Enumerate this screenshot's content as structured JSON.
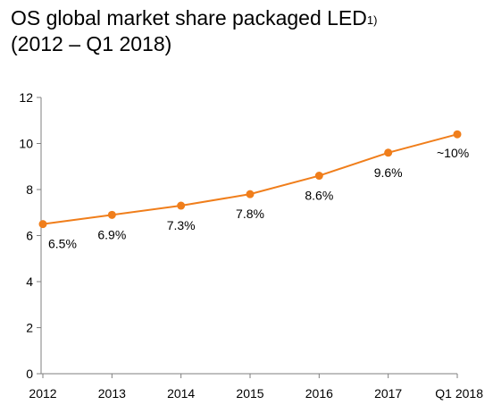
{
  "title": {
    "line1": "OS global market share packaged LED",
    "footnote_mark": "1)",
    "line2": "(2012 – Q1 2018)"
  },
  "colors": {
    "series": "#F07E1B",
    "axis": "#7f7f7f"
  },
  "chart_data": {
    "type": "line",
    "title": "OS global market share packaged LED 1) (2012 – Q1 2018)",
    "x": [
      "2012",
      "2013",
      "2014",
      "2015",
      "2016",
      "2017",
      "Q1 2018"
    ],
    "series": [
      {
        "values": [
          6.5,
          6.9,
          7.3,
          7.8,
          8.6,
          9.6,
          10.4
        ],
        "data_labels": [
          "6.5%",
          "6.9%",
          "7.3%",
          "7.8%",
          "8.6%",
          "9.6%",
          "~10%"
        ]
      }
    ],
    "ylim": [
      0,
      12
    ],
    "yticks": [
      0,
      2,
      4,
      6,
      8,
      10,
      12
    ],
    "xlabel": "",
    "ylabel": "",
    "grid": false,
    "legend": "none"
  }
}
